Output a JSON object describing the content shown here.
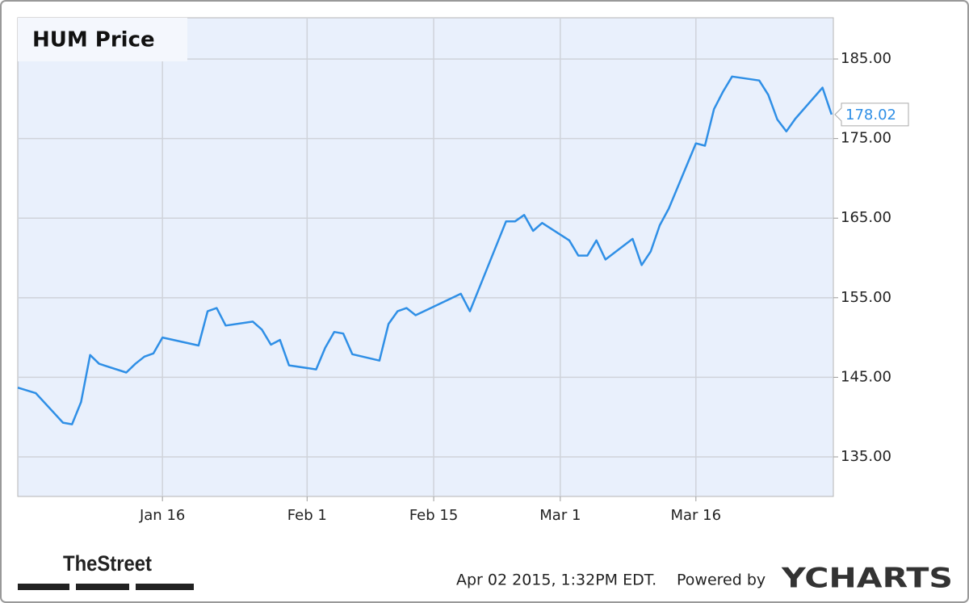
{
  "chart_data": {
    "type": "line",
    "title": "HUM Price",
    "x": [
      0,
      2,
      5,
      6,
      7,
      8,
      9,
      12,
      13,
      14,
      15,
      16,
      20,
      21,
      22,
      23,
      26,
      27,
      28,
      29,
      30,
      33,
      34,
      35,
      36,
      37,
      40,
      41,
      42,
      43,
      44,
      49,
      50,
      54,
      55,
      56,
      57,
      58,
      61,
      62,
      63,
      64,
      65,
      68,
      69,
      70,
      71,
      72,
      75,
      76,
      77,
      78,
      79,
      82,
      83,
      84,
      85,
      86,
      89,
      90
    ],
    "values": [
      143.7,
      143.0,
      139.3,
      139.1,
      141.9,
      147.8,
      146.7,
      145.6,
      146.7,
      147.6,
      148.0,
      150.0,
      149.0,
      153.3,
      153.7,
      151.5,
      152.0,
      151.0,
      149.1,
      149.7,
      146.5,
      146.0,
      148.7,
      150.7,
      150.5,
      147.9,
      147.1,
      151.7,
      153.3,
      153.7,
      152.8,
      155.5,
      153.3,
      164.6,
      164.6,
      165.4,
      163.4,
      164.4,
      162.2,
      160.3,
      160.3,
      162.2,
      159.8,
      162.4,
      159.1,
      160.8,
      164.1,
      166.2,
      174.4,
      174.1,
      178.7,
      180.9,
      182.8,
      182.3,
      180.5,
      177.4,
      175.9,
      177.5,
      181.4,
      178.02
    ],
    "color": "#2f8fe6",
    "xlim": [
      0,
      90.2
    ],
    "xticks": [
      {
        "value": 16,
        "label": "Jan 16"
      },
      {
        "value": 32,
        "label": "Feb 1"
      },
      {
        "value": 46,
        "label": "Feb 15"
      },
      {
        "value": 60,
        "label": "Mar 1"
      },
      {
        "value": 75,
        "label": "Mar 16"
      }
    ],
    "ylim": [
      130.03,
      190.18
    ],
    "yticks": [
      {
        "value": 135,
        "label": "135.00"
      },
      {
        "value": 145,
        "label": "145.00"
      },
      {
        "value": 155,
        "label": "155.00"
      },
      {
        "value": 165,
        "label": "165.00"
      },
      {
        "value": 175,
        "label": "175.00"
      },
      {
        "value": 185,
        "label": "185.00"
      }
    ],
    "grid": true,
    "logo": "TheStreet",
    "timestamp": "Apr 02 2015, 1:32PM EDT.",
    "powered_by": "Powered by",
    "brand": "YCHARTS"
  }
}
